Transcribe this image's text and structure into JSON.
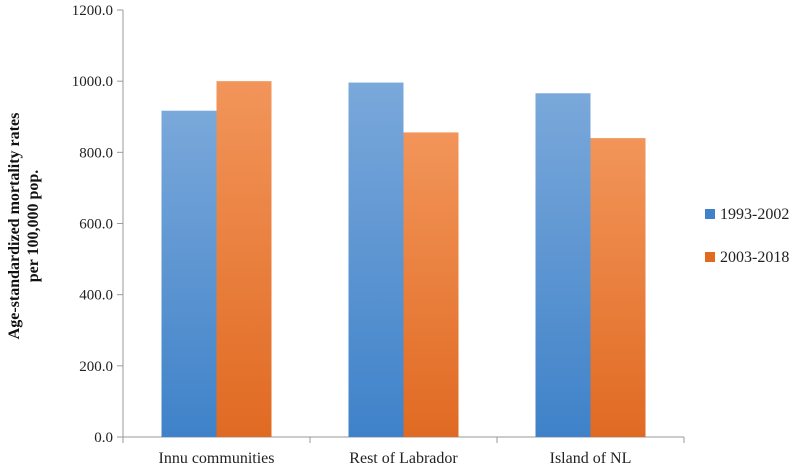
{
  "chart_data": {
    "type": "bar",
    "title": "",
    "xlabel": "",
    "ylabel_line1": "Age-standardized mortality rates",
    "ylabel_line2": "per 100,000 pop.",
    "categories": [
      "Innu communities",
      "Rest of Labrador",
      "Island of NL"
    ],
    "series": [
      {
        "name": "1993-2002",
        "values": [
          917,
          996,
          966
        ]
      },
      {
        "name": "2003-2018",
        "values": [
          1000,
          856,
          840
        ]
      }
    ],
    "ylim": [
      0,
      1200
    ],
    "yticks": [
      "0.0",
      "200.0",
      "400.0",
      "600.0",
      "800.0",
      "1000.0",
      "1200.0"
    ],
    "ytick_values": [
      0,
      200,
      400,
      600,
      800,
      1000,
      1200
    ],
    "grid": false,
    "legend_position": "right",
    "colors": {
      "series0_top": "#7aa8da",
      "series0_bottom": "#3f82c9",
      "series1_top": "#f2955a",
      "series1_bottom": "#e06a22",
      "axis": "#9a9a9a"
    }
  }
}
